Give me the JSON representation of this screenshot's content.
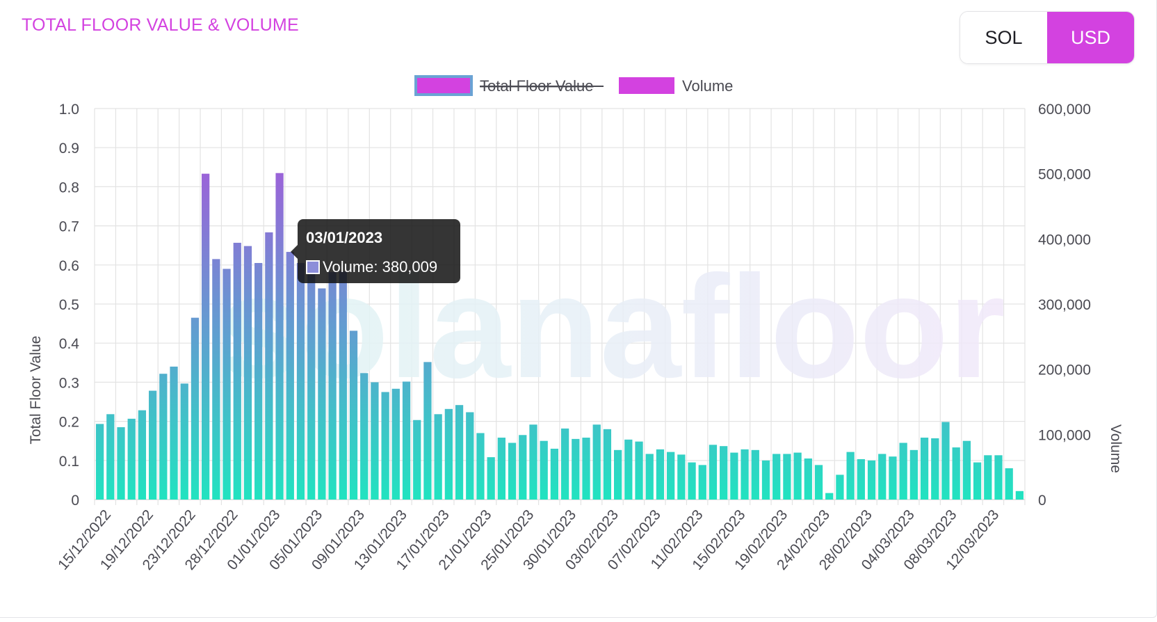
{
  "header": {
    "title": "TOTAL FLOOR VALUE & VOLUME"
  },
  "currency_toggle": {
    "options": [
      "SOL",
      "USD"
    ],
    "selected": "USD"
  },
  "watermark": "solanafloor",
  "tooltip": {
    "title": "03/01/2023",
    "label": "Volume: 380,009"
  },
  "colors": {
    "accent": "#d342e0",
    "bar_top": "#9a64d8",
    "bar_bottom": "#21e3c0",
    "grid": "#e3e3e3"
  },
  "chart_data": {
    "type": "bar",
    "legend": [
      {
        "name": "Total Floor Value",
        "hidden": true
      },
      {
        "name": "Volume",
        "hidden": false
      }
    ],
    "legend_position": "top-center",
    "y_left": {
      "label": "Total Floor Value",
      "min": 0,
      "max": 1.0,
      "ticks": [
        "1.0",
        "0.9",
        "0.8",
        "0.7",
        "0.6",
        "0.5",
        "0.4",
        "0.3",
        "0.2",
        "0.1",
        "0"
      ]
    },
    "y_right": {
      "label": "Volume",
      "min": 0,
      "max": 600000,
      "ticks": [
        "600,000",
        "500,000",
        "400,000",
        "300,000",
        "200,000",
        "100,000",
        "0"
      ]
    },
    "x_tick_labels": [
      "15/12/2022",
      "19/12/2022",
      "23/12/2022",
      "28/12/2022",
      "01/01/2023",
      "05/01/2023",
      "09/01/2023",
      "13/01/2023",
      "17/01/2023",
      "21/01/2023",
      "25/01/2023",
      "30/01/2023",
      "03/02/2023",
      "07/02/2023",
      "11/02/2023",
      "15/02/2023",
      "19/02/2023",
      "24/02/2023",
      "28/02/2023",
      "04/03/2023",
      "08/03/2023",
      "12/03/2023"
    ],
    "grid": true,
    "series": [
      {
        "name": "Volume",
        "values": [
          116000,
          131000,
          111000,
          124000,
          137000,
          167000,
          193000,
          204000,
          178000,
          279000,
          500000,
          369000,
          354000,
          394000,
          389000,
          363000,
          410000,
          501000,
          380009,
          363000,
          367000,
          324000,
          349000,
          350000,
          259000,
          194000,
          180000,
          165000,
          170000,
          181000,
          122000,
          211000,
          131000,
          139000,
          145000,
          134000,
          102000,
          65000,
          95000,
          87000,
          99000,
          115000,
          90000,
          78000,
          109000,
          93000,
          95000,
          115000,
          108000,
          76000,
          92000,
          89000,
          70000,
          77000,
          73000,
          69000,
          57000,
          53000,
          84000,
          82000,
          72000,
          77000,
          76000,
          60000,
          70000,
          70000,
          72000,
          63000,
          53000,
          10000,
          38000,
          73000,
          62000,
          60000,
          70000,
          66000,
          87000,
          76000,
          95000,
          94000,
          119000,
          80000,
          90000,
          57000,
          68000,
          68000,
          48000,
          13000
        ]
      }
    ]
  }
}
